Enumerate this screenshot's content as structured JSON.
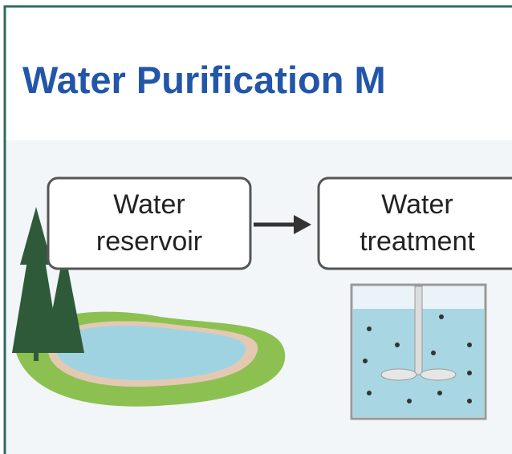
{
  "header": {
    "title": "Water Purification M"
  },
  "nodes": [
    {
      "lines": [
        "Water",
        "reservoir"
      ]
    },
    {
      "lines": [
        "Water",
        "treatment"
      ]
    }
  ]
}
